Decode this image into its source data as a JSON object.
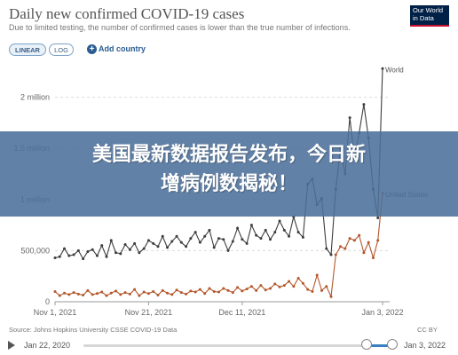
{
  "header": {
    "title": "Daily new confirmed COVID-19 cases",
    "subtitle": "Due to limited testing, the number of confirmed cases is lower than the true number of infections.",
    "logo_line1": "Our World",
    "logo_line2": "in Data"
  },
  "controls": {
    "linear_label": "LINEAR",
    "log_label": "LOG",
    "add_country_label": "Add country"
  },
  "banner": {
    "line1": "美国最新数据报告发布，今日新",
    "line2": "增病例数揭秘！"
  },
  "footer": {
    "source": "Source: Johns Hopkins University CSSE COVID-19 Data",
    "license": "CC BY"
  },
  "timeline": {
    "start_date": "Jan 22, 2020",
    "end_date": "Jan 3, 2022",
    "range_start_fraction": 0.906,
    "range_end_fraction": 1.0
  },
  "colors": {
    "world": "#3d3d3d",
    "united_states": "#b4572b",
    "banner": "#4c709a"
  },
  "chart_data": {
    "type": "line",
    "title": "Daily new confirmed COVID-19 cases",
    "yticks": [
      "500,000",
      "1 million",
      "1.5 million",
      "2 million"
    ],
    "ylim": [
      0,
      2300000
    ],
    "xticks": [
      "Nov 1, 2021",
      "Nov 21, 2021",
      "Dec 11, 2021",
      "Jan 3, 2022"
    ],
    "legend_placement": "end-of-line labels",
    "grid": "horizontal dashed",
    "series": [
      {
        "name": "World",
        "values": [
          430000,
          440000,
          520000,
          450000,
          460000,
          500000,
          420000,
          490000,
          510000,
          450000,
          550000,
          440000,
          600000,
          480000,
          470000,
          560000,
          510000,
          570000,
          480000,
          520000,
          600000,
          570000,
          540000,
          640000,
          530000,
          590000,
          640000,
          580000,
          540000,
          620000,
          680000,
          580000,
          640000,
          700000,
          530000,
          620000,
          610000,
          500000,
          590000,
          720000,
          610000,
          570000,
          750000,
          650000,
          620000,
          700000,
          610000,
          680000,
          790000,
          700000,
          640000,
          830000,
          680000,
          630000,
          1150000,
          1200000,
          950000,
          1010000,
          520000,
          460000,
          1100000,
          1500000,
          1250000,
          1800000,
          1400000,
          1650000,
          1930000,
          1600000,
          1100000,
          820000,
          2280000
        ]
      },
      {
        "name": "United States",
        "values": [
          100000,
          60000,
          85000,
          70000,
          90000,
          75000,
          65000,
          110000,
          70000,
          80000,
          95000,
          60000,
          85000,
          105000,
          70000,
          90000,
          75000,
          120000,
          60000,
          95000,
          80000,
          100000,
          65000,
          110000,
          85000,
          70000,
          115000,
          90000,
          75000,
          105000,
          95000,
          120000,
          80000,
          130000,
          100000,
          95000,
          130000,
          110000,
          90000,
          140000,
          105000,
          125000,
          150000,
          110000,
          160000,
          115000,
          130000,
          175000,
          145000,
          160000,
          200000,
          150000,
          230000,
          180000,
          120000,
          100000,
          260000,
          110000,
          150000,
          50000,
          460000,
          540000,
          520000,
          620000,
          600000,
          650000,
          480000,
          580000,
          430000,
          600000,
          1060000
        ]
      }
    ]
  }
}
